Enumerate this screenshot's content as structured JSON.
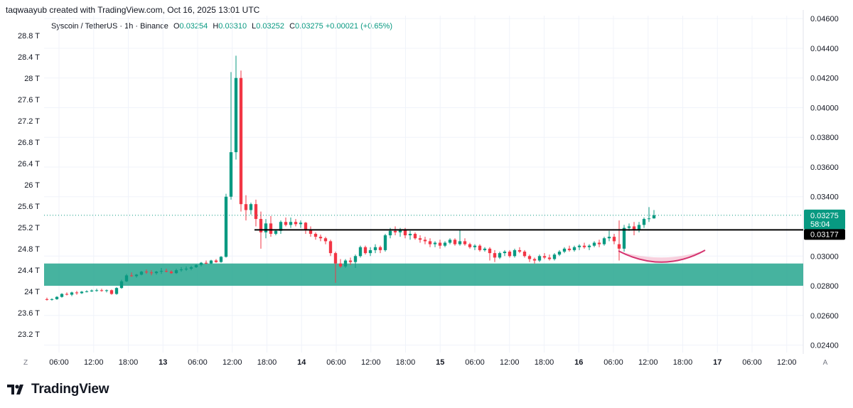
{
  "credit": "taqwaayub created with TradingView.com, Oct 16, 2025 13:01 UTC",
  "legend": {
    "symbol": "Syscoin / TetherUS · 1h · Binance",
    "o_key": "O",
    "o_val": "0.03254",
    "h_key": "H",
    "h_val": "0.03310",
    "l_key": "L",
    "l_val": "0.03252",
    "c_key": "C",
    "c_val": "0.03275",
    "change": "+0.00021 (+0.65%)"
  },
  "price_labels": {
    "last_price": "0.03275",
    "countdown": "58:04",
    "line_price": "0.03177"
  },
  "corner_left": "Z",
  "corner_right": "A",
  "brand": "TradingView",
  "colors": {
    "up": "#089981",
    "down": "#f23645",
    "zone": "#26a68e",
    "arc": "#d4336f",
    "arc_fill": "#f6c6d6",
    "level_line": "#000000"
  },
  "chart_data": {
    "type": "candlestick",
    "title": "Syscoin / TetherUS · 1h · Binance",
    "right_axis": {
      "ticks": [
        "0.04600",
        "0.04400",
        "0.04200",
        "0.04000",
        "0.03800",
        "0.03600",
        "0.03400",
        "0.03000",
        "0.02800",
        "0.02600",
        "0.02400"
      ],
      "range": [
        0.0235,
        0.0462
      ]
    },
    "left_axis": {
      "ticks": [
        "28.8 T",
        "28.4 T",
        "28 T",
        "27.6 T",
        "27.2 T",
        "26.8 T",
        "26.4 T",
        "26 T",
        "25.6 T",
        "25.2 T",
        "24.8 T",
        "24.4 T",
        "24 T",
        "23.6 T",
        "23.2 T"
      ]
    },
    "x_ticks": [
      {
        "label": "06:00",
        "day": false
      },
      {
        "label": "12:00",
        "day": false
      },
      {
        "label": "18:00",
        "day": false
      },
      {
        "label": "13",
        "day": true
      },
      {
        "label": "06:00",
        "day": false
      },
      {
        "label": "12:00",
        "day": false
      },
      {
        "label": "18:00",
        "day": false
      },
      {
        "label": "14",
        "day": true
      },
      {
        "label": "06:00",
        "day": false
      },
      {
        "label": "12:00",
        "day": false
      },
      {
        "label": "18:00",
        "day": false
      },
      {
        "label": "15",
        "day": true
      },
      {
        "label": "06:00",
        "day": false
      },
      {
        "label": "12:00",
        "day": false
      },
      {
        "label": "18:00",
        "day": false
      },
      {
        "label": "16",
        "day": true
      },
      {
        "label": "06:00",
        "day": false
      },
      {
        "label": "12:00",
        "day": false
      },
      {
        "label": "18:00",
        "day": false
      },
      {
        "label": "17",
        "day": true
      },
      {
        "label": "06:00",
        "day": false
      },
      {
        "label": "12:00",
        "day": false
      }
    ],
    "support_zone": [
      0.028,
      0.0295
    ],
    "level_line": 0.03177,
    "last_price": 0.03275,
    "candles": [
      [
        0.0271,
        0.0272,
        0.027,
        0.02705
      ],
      [
        0.02705,
        0.02715,
        0.027,
        0.0271
      ],
      [
        0.0271,
        0.0273,
        0.02705,
        0.02725
      ],
      [
        0.02725,
        0.0275,
        0.0272,
        0.02745
      ],
      [
        0.02745,
        0.02755,
        0.02735,
        0.0274
      ],
      [
        0.0274,
        0.0276,
        0.0273,
        0.02755
      ],
      [
        0.02755,
        0.02765,
        0.0274,
        0.0275
      ],
      [
        0.0275,
        0.02765,
        0.02745,
        0.0276
      ],
      [
        0.0276,
        0.0277,
        0.02755,
        0.02762
      ],
      [
        0.02762,
        0.02775,
        0.02758,
        0.02768
      ],
      [
        0.02768,
        0.0278,
        0.0276,
        0.0277
      ],
      [
        0.0277,
        0.0278,
        0.0276,
        0.02765
      ],
      [
        0.02765,
        0.02775,
        0.02755,
        0.0277
      ],
      [
        0.0277,
        0.02775,
        0.0274,
        0.02745
      ],
      [
        0.02745,
        0.0279,
        0.0274,
        0.02785
      ],
      [
        0.02785,
        0.0284,
        0.0278,
        0.0283
      ],
      [
        0.0283,
        0.0288,
        0.02825,
        0.0287
      ],
      [
        0.0287,
        0.0289,
        0.0286,
        0.02865
      ],
      [
        0.02865,
        0.0288,
        0.02855,
        0.02875
      ],
      [
        0.02875,
        0.029,
        0.0287,
        0.02895
      ],
      [
        0.02895,
        0.0291,
        0.0288,
        0.0289
      ],
      [
        0.0289,
        0.02905,
        0.0287,
        0.02885
      ],
      [
        0.02885,
        0.029,
        0.02875,
        0.02895
      ],
      [
        0.02895,
        0.0292,
        0.0288,
        0.029
      ],
      [
        0.029,
        0.02915,
        0.0289,
        0.02895
      ],
      [
        0.02895,
        0.02905,
        0.0288,
        0.02885
      ],
      [
        0.02885,
        0.02915,
        0.0288,
        0.02905
      ],
      [
        0.02905,
        0.02925,
        0.02895,
        0.0291
      ],
      [
        0.0291,
        0.0293,
        0.029,
        0.02915
      ],
      [
        0.02915,
        0.02935,
        0.02905,
        0.02925
      ],
      [
        0.02925,
        0.02945,
        0.0292,
        0.0294
      ],
      [
        0.0294,
        0.0296,
        0.0293,
        0.02955
      ],
      [
        0.02955,
        0.0297,
        0.02945,
        0.0295
      ],
      [
        0.0295,
        0.02975,
        0.02945,
        0.0297
      ],
      [
        0.0297,
        0.0298,
        0.02955,
        0.0296
      ],
      [
        0.0296,
        0.03,
        0.02955,
        0.02995
      ],
      [
        0.02995,
        0.0342,
        0.0299,
        0.034
      ],
      [
        0.034,
        0.0424,
        0.0338,
        0.037
      ],
      [
        0.037,
        0.0435,
        0.0365,
        0.042
      ],
      [
        0.042,
        0.0425,
        0.033,
        0.0335
      ],
      [
        0.0335,
        0.0341,
        0.0324,
        0.0331
      ],
      [
        0.0331,
        0.0336,
        0.0328,
        0.0335
      ],
      [
        0.0335,
        0.0338,
        0.032,
        0.0325
      ],
      [
        0.0325,
        0.033,
        0.0305,
        0.0316
      ],
      [
        0.0316,
        0.0325,
        0.0312,
        0.0322
      ],
      [
        0.0322,
        0.0327,
        0.0313,
        0.0315
      ],
      [
        0.0315,
        0.0318,
        0.0314,
        0.0317
      ],
      [
        0.0317,
        0.0324,
        0.0315,
        0.0323
      ],
      [
        0.0323,
        0.0326,
        0.032,
        0.0321
      ],
      [
        0.0321,
        0.0326,
        0.0319,
        0.0323
      ],
      [
        0.0323,
        0.0325,
        0.032,
        0.03215
      ],
      [
        0.03215,
        0.0324,
        0.0319,
        0.03225
      ],
      [
        0.03225,
        0.0323,
        0.0315,
        0.0318
      ],
      [
        0.0318,
        0.032,
        0.0313,
        0.0315
      ],
      [
        0.0315,
        0.0316,
        0.0311,
        0.0313
      ],
      [
        0.0313,
        0.03145,
        0.031,
        0.0312
      ],
      [
        0.0312,
        0.0313,
        0.0308,
        0.031
      ],
      [
        0.031,
        0.0311,
        0.03,
        0.0302
      ],
      [
        0.0302,
        0.0303,
        0.0282,
        0.0295
      ],
      [
        0.0295,
        0.0298,
        0.0292,
        0.0293
      ],
      [
        0.0293,
        0.0298,
        0.0292,
        0.0297
      ],
      [
        0.0297,
        0.0299,
        0.0294,
        0.0296
      ],
      [
        0.0296,
        0.0301,
        0.0292,
        0.03
      ],
      [
        0.03,
        0.0307,
        0.0299,
        0.0306
      ],
      [
        0.0306,
        0.0307,
        0.0301,
        0.0302
      ],
      [
        0.0302,
        0.0306,
        0.03,
        0.0304
      ],
      [
        0.0304,
        0.0308,
        0.0302,
        0.0306
      ],
      [
        0.0306,
        0.0307,
        0.0302,
        0.0304
      ],
      [
        0.0304,
        0.0315,
        0.0303,
        0.0314
      ],
      [
        0.0314,
        0.0319,
        0.0312,
        0.0317
      ],
      [
        0.0317,
        0.032,
        0.0314,
        0.0316
      ],
      [
        0.0316,
        0.0319,
        0.0313,
        0.0318
      ],
      [
        0.0318,
        0.0319,
        0.0312,
        0.0314
      ],
      [
        0.0314,
        0.0317,
        0.0311,
        0.0315
      ],
      [
        0.0315,
        0.0316,
        0.0311,
        0.0312
      ],
      [
        0.0312,
        0.0314,
        0.0309,
        0.0311
      ],
      [
        0.0311,
        0.0313,
        0.0308,
        0.031
      ],
      [
        0.031,
        0.0312,
        0.0306,
        0.0308
      ],
      [
        0.0308,
        0.031,
        0.0306,
        0.0309
      ],
      [
        0.0309,
        0.0311,
        0.0305,
        0.0307
      ],
      [
        0.0307,
        0.031,
        0.0306,
        0.0309
      ],
      [
        0.0309,
        0.0312,
        0.0308,
        0.0311
      ],
      [
        0.0311,
        0.0312,
        0.0307,
        0.0308
      ],
      [
        0.0308,
        0.0318,
        0.0307,
        0.031
      ],
      [
        0.031,
        0.0312,
        0.0307,
        0.0308
      ],
      [
        0.0308,
        0.0309,
        0.0305,
        0.0306
      ],
      [
        0.0306,
        0.0308,
        0.0304,
        0.0307
      ],
      [
        0.0307,
        0.0308,
        0.0303,
        0.0304
      ],
      [
        0.0304,
        0.0306,
        0.0303,
        0.0305
      ],
      [
        0.0305,
        0.0306,
        0.0297,
        0.0302
      ],
      [
        0.0302,
        0.0304,
        0.0296,
        0.0299
      ],
      [
        0.0299,
        0.0303,
        0.0298,
        0.0302
      ],
      [
        0.0302,
        0.0304,
        0.03,
        0.0303
      ],
      [
        0.0303,
        0.0304,
        0.0299,
        0.03
      ],
      [
        0.03,
        0.0305,
        0.0299,
        0.0304
      ],
      [
        0.0304,
        0.0306,
        0.0302,
        0.0303
      ],
      [
        0.0303,
        0.0304,
        0.0299,
        0.03
      ],
      [
        0.03,
        0.0301,
        0.0296,
        0.0298
      ],
      [
        0.0298,
        0.0299,
        0.0295,
        0.0297
      ],
      [
        0.0297,
        0.0301,
        0.0296,
        0.03
      ],
      [
        0.03,
        0.0302,
        0.0298,
        0.0299
      ],
      [
        0.0299,
        0.0301,
        0.0297,
        0.0298
      ],
      [
        0.0298,
        0.0302,
        0.0297,
        0.0301
      ],
      [
        0.0301,
        0.0304,
        0.03,
        0.0303
      ],
      [
        0.0303,
        0.0306,
        0.0302,
        0.0305
      ],
      [
        0.0305,
        0.0307,
        0.0303,
        0.0304
      ],
      [
        0.0304,
        0.0307,
        0.0303,
        0.0306
      ],
      [
        0.0306,
        0.0308,
        0.0304,
        0.0307
      ],
      [
        0.0307,
        0.0309,
        0.0305,
        0.0306
      ],
      [
        0.0306,
        0.0308,
        0.0304,
        0.0307
      ],
      [
        0.0307,
        0.031,
        0.0306,
        0.0309
      ],
      [
        0.0309,
        0.0311,
        0.0306,
        0.0308
      ],
      [
        0.0308,
        0.0313,
        0.0307,
        0.0312
      ],
      [
        0.0312,
        0.0317,
        0.031,
        0.0313
      ],
      [
        0.0313,
        0.0315,
        0.0308,
        0.031
      ],
      [
        0.0308,
        0.0324,
        0.0297,
        0.0305
      ],
      [
        0.0305,
        0.0321,
        0.0303,
        0.0319
      ],
      [
        0.0319,
        0.0322,
        0.0317,
        0.032
      ],
      [
        0.032,
        0.0323,
        0.0314,
        0.0318
      ],
      [
        0.0318,
        0.0323,
        0.0316,
        0.0321
      ],
      [
        0.0321,
        0.0326,
        0.0319,
        0.0325
      ],
      [
        0.0325,
        0.0333,
        0.0323,
        0.03254
      ],
      [
        0.03254,
        0.0331,
        0.03252,
        0.03275
      ]
    ]
  }
}
